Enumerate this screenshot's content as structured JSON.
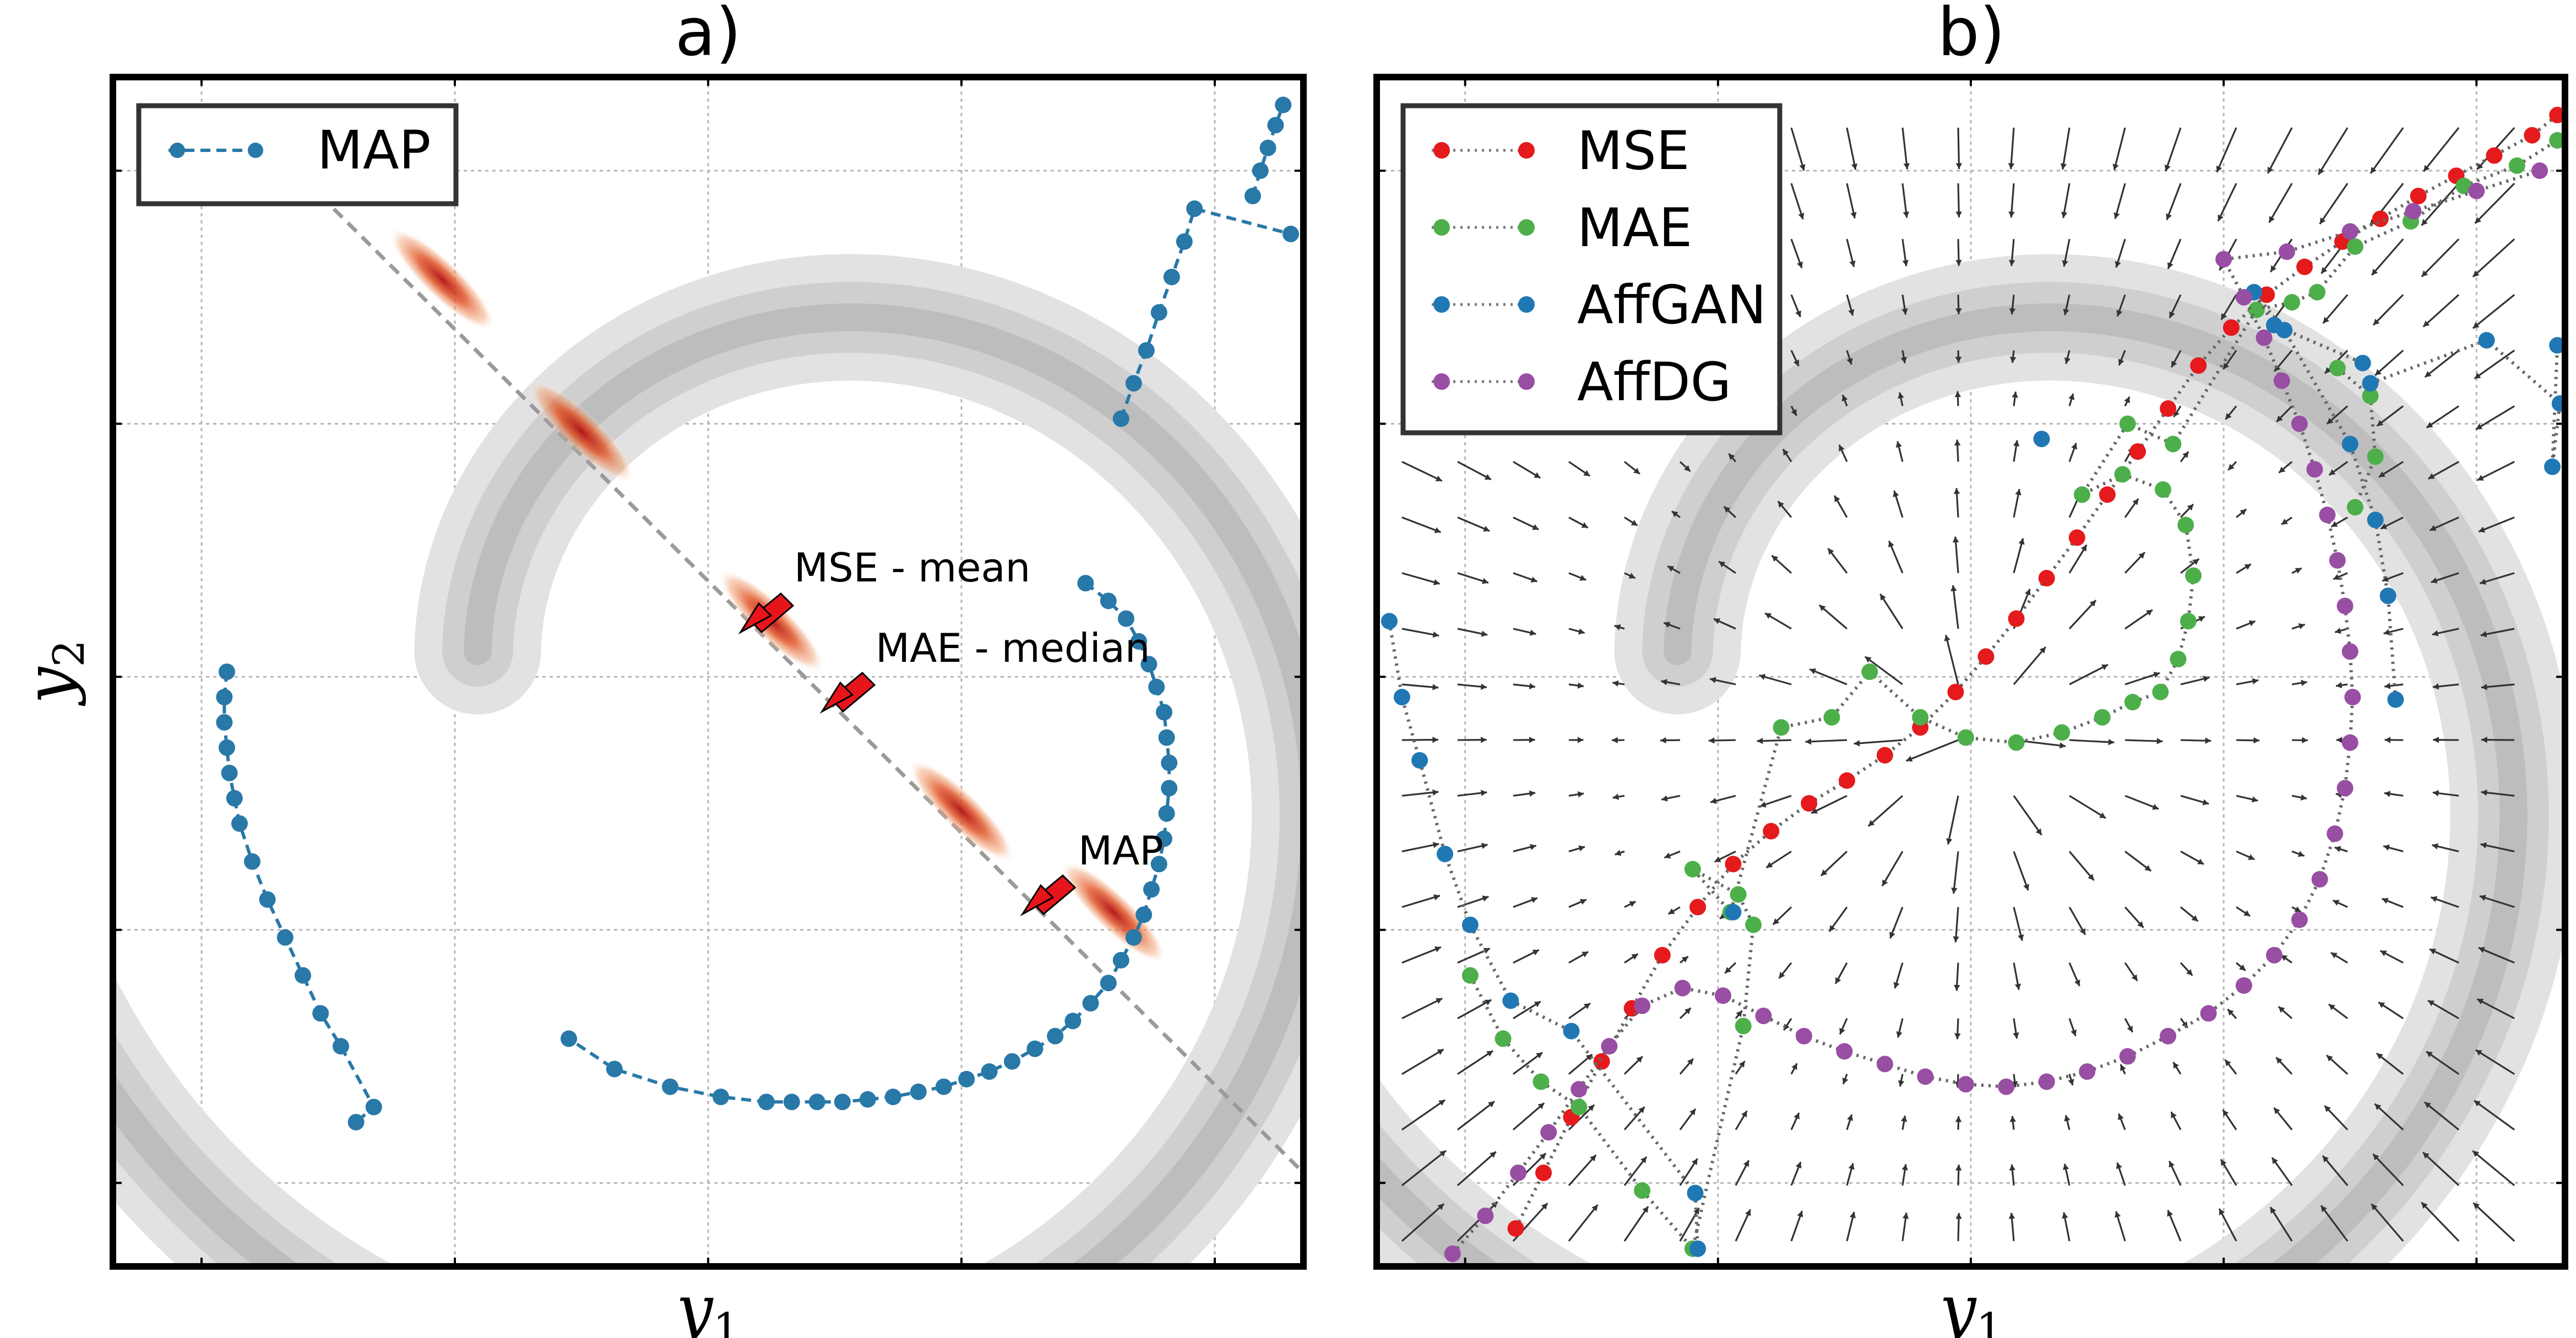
{
  "panels": [
    {
      "label": "a)"
    },
    {
      "label": "b)"
    }
  ],
  "axes": {
    "x_label": "y",
    "x_sub": "1",
    "y_label": "y",
    "y_sub": "2"
  },
  "annotations": [
    {
      "text": "MSE - mean"
    },
    {
      "text": "MAE - median"
    },
    {
      "text": "MAP"
    }
  ],
  "colors": {
    "MAP": "#2878a8",
    "MSE": "#e41a1c",
    "MAE": "#4daf4a",
    "AffGAN": "#1f78b4",
    "AffDG": "#984ea3",
    "spiral": "#c8c8c8",
    "quiver": "#333333",
    "arrow": "#e8141c"
  },
  "chart_data": [
    {
      "type": "scatter",
      "panel": "a)",
      "xlabel": "y1",
      "ylabel": "y2",
      "xlim": [
        -2.6,
        2.1
      ],
      "ylim": [
        -2.35,
        2.35
      ],
      "grid": true,
      "legend": {
        "position": "top-left",
        "entries": [
          "MAP"
        ]
      },
      "series": [
        {
          "name": "MAP",
          "style": "dashed-with-markers",
          "points": [
            [
              1.38,
              1.0
            ],
            [
              1.43,
              1.14
            ],
            [
              1.48,
              1.27
            ],
            [
              1.53,
              1.42
            ],
            [
              1.58,
              1.56
            ],
            [
              1.63,
              1.7
            ],
            [
              1.67,
              1.83
            ],
            [
              2.05,
              1.73
            ],
            [
              1.24,
              0.35
            ],
            [
              1.33,
              0.28
            ],
            [
              1.4,
              0.21
            ],
            [
              1.45,
              0.12
            ],
            [
              1.49,
              0.03
            ],
            [
              1.52,
              -0.06
            ],
            [
              1.55,
              -0.16
            ],
            [
              1.56,
              -0.26
            ],
            [
              1.57,
              -0.36
            ],
            [
              1.57,
              -0.46
            ],
            [
              1.56,
              -0.56
            ],
            [
              1.55,
              -0.66
            ],
            [
              1.53,
              -0.76
            ],
            [
              1.5,
              -0.86
            ],
            [
              1.47,
              -0.96
            ],
            [
              1.43,
              -1.05
            ],
            [
              1.38,
              -1.14
            ],
            [
              1.33,
              -1.23
            ],
            [
              1.26,
              -1.31
            ],
            [
              1.19,
              -1.38
            ],
            [
              1.12,
              -1.44
            ],
            [
              1.04,
              -1.49
            ],
            [
              0.95,
              -1.54
            ],
            [
              0.86,
              -1.58
            ],
            [
              0.77,
              -1.61
            ],
            [
              0.68,
              -1.64
            ],
            [
              0.58,
              -1.66
            ],
            [
              0.48,
              -1.68
            ],
            [
              0.38,
              -1.69
            ],
            [
              0.28,
              -1.7
            ],
            [
              0.18,
              -1.7
            ],
            [
              0.08,
              -1.7
            ],
            [
              -0.02,
              -1.7
            ],
            [
              -0.2,
              -1.68
            ],
            [
              -0.4,
              -1.64
            ],
            [
              -0.62,
              -1.57
            ],
            [
              -0.8,
              -1.45
            ],
            [
              -2.15,
              -0.0
            ],
            [
              -2.16,
              -0.1
            ],
            [
              -2.16,
              -0.2
            ],
            [
              -2.15,
              -0.3
            ],
            [
              -2.14,
              -0.4
            ],
            [
              -2.12,
              -0.5
            ],
            [
              -2.1,
              -0.6
            ],
            [
              -2.05,
              -0.75
            ],
            [
              -1.99,
              -0.9
            ],
            [
              -1.92,
              -1.05
            ],
            [
              -1.85,
              -1.2
            ],
            [
              -1.78,
              -1.35
            ],
            [
              -1.7,
              -1.48
            ],
            [
              -1.57,
              -1.72
            ],
            [
              -1.64,
              -1.78
            ],
            [
              1.9,
              1.88
            ],
            [
              1.93,
              1.98
            ],
            [
              1.96,
              2.07
            ],
            [
              1.99,
              2.16
            ],
            [
              2.02,
              2.24
            ]
          ]
        }
      ],
      "density_blobs": [
        {
          "x": -1.3,
          "y": 1.55
        },
        {
          "x": -0.75,
          "y": 0.95
        },
        {
          "x": 0.0,
          "y": 0.2
        },
        {
          "x": 0.75,
          "y": -0.55
        },
        {
          "x": 1.35,
          "y": -0.95
        }
      ]
    },
    {
      "type": "scatter",
      "panel": "b)",
      "xlabel": "y1",
      "ylabel": "",
      "xlim": [
        -2.35,
        2.35
      ],
      "ylim": [
        -2.35,
        2.35
      ],
      "grid": true,
      "legend": {
        "position": "top-left",
        "entries": [
          "MSE",
          "MAE",
          "AffGAN",
          "AffDG"
        ]
      },
      "series": [
        {
          "name": "MSE",
          "style": "dotted-with-markers",
          "points": [
            [
              -1.8,
              -2.2
            ],
            [
              -1.69,
              -1.98
            ],
            [
              -1.58,
              -1.76
            ],
            [
              -1.46,
              -1.54
            ],
            [
              -1.34,
              -1.33
            ],
            [
              -1.22,
              -1.12
            ],
            [
              -1.08,
              -0.93
            ],
            [
              -0.94,
              -0.76
            ],
            [
              -0.79,
              -0.63
            ],
            [
              -0.64,
              -0.52
            ],
            [
              -0.49,
              -0.43
            ],
            [
              -0.34,
              -0.33
            ],
            [
              -0.2,
              -0.22
            ],
            [
              -0.06,
              -0.08
            ],
            [
              0.06,
              0.06
            ],
            [
              0.18,
              0.21
            ],
            [
              0.3,
              0.37
            ],
            [
              0.42,
              0.53
            ],
            [
              0.54,
              0.7
            ],
            [
              0.66,
              0.87
            ],
            [
              0.78,
              1.04
            ],
            [
              0.9,
              1.21
            ],
            [
              1.03,
              1.36
            ],
            [
              1.17,
              1.49
            ],
            [
              1.32,
              1.6
            ],
            [
              1.47,
              1.7
            ],
            [
              1.62,
              1.79
            ],
            [
              1.77,
              1.88
            ],
            [
              1.92,
              1.96
            ],
            [
              2.07,
              2.04
            ],
            [
              2.22,
              2.12
            ],
            [
              2.32,
              2.2
            ]
          ]
        },
        {
          "name": "MAE",
          "style": "dotted-with-markers",
          "points": [
            [
              -1.98,
              -1.2
            ],
            [
              -1.85,
              -1.45
            ],
            [
              -1.7,
              -1.62
            ],
            [
              -1.55,
              -1.72
            ],
            [
              -1.3,
              -2.05
            ],
            [
              -1.1,
              -2.28
            ],
            [
              -0.9,
              -1.4
            ],
            [
              -0.86,
              -1.0
            ],
            [
              -0.92,
              -0.88
            ],
            [
              -1.1,
              -0.78
            ],
            [
              -0.95,
              -0.95
            ],
            [
              -0.75,
              -0.22
            ],
            [
              -0.55,
              -0.18
            ],
            [
              -0.4,
              0.0
            ],
            [
              -0.2,
              -0.18
            ],
            [
              -0.02,
              -0.26
            ],
            [
              0.18,
              -0.28
            ],
            [
              0.36,
              -0.24
            ],
            [
              0.52,
              -0.18
            ],
            [
              0.64,
              -0.12
            ],
            [
              0.75,
              -0.08
            ],
            [
              0.82,
              0.05
            ],
            [
              0.86,
              0.2
            ],
            [
              0.88,
              0.38
            ],
            [
              0.85,
              0.58
            ],
            [
              0.76,
              0.72
            ],
            [
              0.6,
              0.78
            ],
            [
              0.44,
              0.7
            ],
            [
              0.62,
              0.98
            ],
            [
              0.8,
              0.9
            ],
            [
              1.13,
              1.43
            ],
            [
              1.27,
              1.46
            ],
            [
              1.37,
              1.5
            ],
            [
              1.52,
              1.68
            ],
            [
              1.74,
              1.78
            ],
            [
              1.95,
              1.92
            ],
            [
              2.16,
              2.0
            ],
            [
              2.32,
              2.1
            ],
            [
              1.45,
              1.2
            ],
            [
              1.58,
              1.09
            ],
            [
              1.6,
              0.85
            ],
            [
              1.52,
              0.65
            ]
          ]
        },
        {
          "name": "AffGAN",
          "style": "dotted-with-markers",
          "points": [
            [
              -2.3,
              0.2
            ],
            [
              -2.25,
              -0.1
            ],
            [
              -2.18,
              -0.35
            ],
            [
              -2.08,
              -0.72
            ],
            [
              -1.98,
              -1.0
            ],
            [
              -1.82,
              -1.3
            ],
            [
              -1.58,
              -1.42
            ],
            [
              -1.09,
              -2.06
            ],
            [
              -1.08,
              -2.28
            ],
            [
              -0.94,
              -0.95
            ],
            [
              0.28,
              0.92
            ],
            [
              1.58,
              1.14
            ],
            [
              2.04,
              1.31
            ],
            [
              2.33,
              1.06
            ],
            [
              2.3,
              0.81
            ],
            [
              2.32,
              1.29
            ],
            [
              1.68,
              -0.11
            ],
            [
              1.65,
              0.3
            ],
            [
              1.6,
              0.6
            ],
            [
              1.5,
              0.9
            ],
            [
              1.24,
              1.35
            ],
            [
              1.12,
              1.5
            ],
            [
              1.2,
              1.37
            ],
            [
              1.55,
              1.22
            ]
          ]
        },
        {
          "name": "AffDG",
          "style": "dotted-with-markers",
          "points": [
            [
              -2.05,
              -2.3
            ],
            [
              -1.92,
              -2.15
            ],
            [
              -1.79,
              -1.98
            ],
            [
              -1.67,
              -1.82
            ],
            [
              -1.55,
              -1.65
            ],
            [
              -1.43,
              -1.48
            ],
            [
              -1.3,
              -1.32
            ],
            [
              -1.14,
              -1.25
            ],
            [
              -0.98,
              -1.28
            ],
            [
              -0.82,
              -1.36
            ],
            [
              -0.66,
              -1.44
            ],
            [
              -0.5,
              -1.5
            ],
            [
              -0.34,
              -1.55
            ],
            [
              -0.18,
              -1.6
            ],
            [
              -0.02,
              -1.63
            ],
            [
              0.14,
              -1.64
            ],
            [
              0.3,
              -1.62
            ],
            [
              0.46,
              -1.58
            ],
            [
              0.62,
              -1.52
            ],
            [
              0.78,
              -1.44
            ],
            [
              0.94,
              -1.35
            ],
            [
              1.08,
              -1.24
            ],
            [
              1.2,
              -1.12
            ],
            [
              1.3,
              -0.98
            ],
            [
              1.38,
              -0.82
            ],
            [
              1.44,
              -0.64
            ],
            [
              1.48,
              -0.46
            ],
            [
              1.5,
              -0.28
            ],
            [
              1.51,
              -0.1
            ],
            [
              1.5,
              0.08
            ],
            [
              1.48,
              0.26
            ],
            [
              1.45,
              0.44
            ],
            [
              1.41,
              0.62
            ],
            [
              1.36,
              0.8
            ],
            [
              1.3,
              0.98
            ],
            [
              1.23,
              1.15
            ],
            [
              1.16,
              1.32
            ],
            [
              1.08,
              1.48
            ],
            [
              1.0,
              1.63
            ],
            [
              1.25,
              1.66
            ],
            [
              1.5,
              1.74
            ],
            [
              1.75,
              1.82
            ],
            [
              2.0,
              1.9
            ],
            [
              2.25,
              1.98
            ]
          ]
        }
      ]
    }
  ]
}
